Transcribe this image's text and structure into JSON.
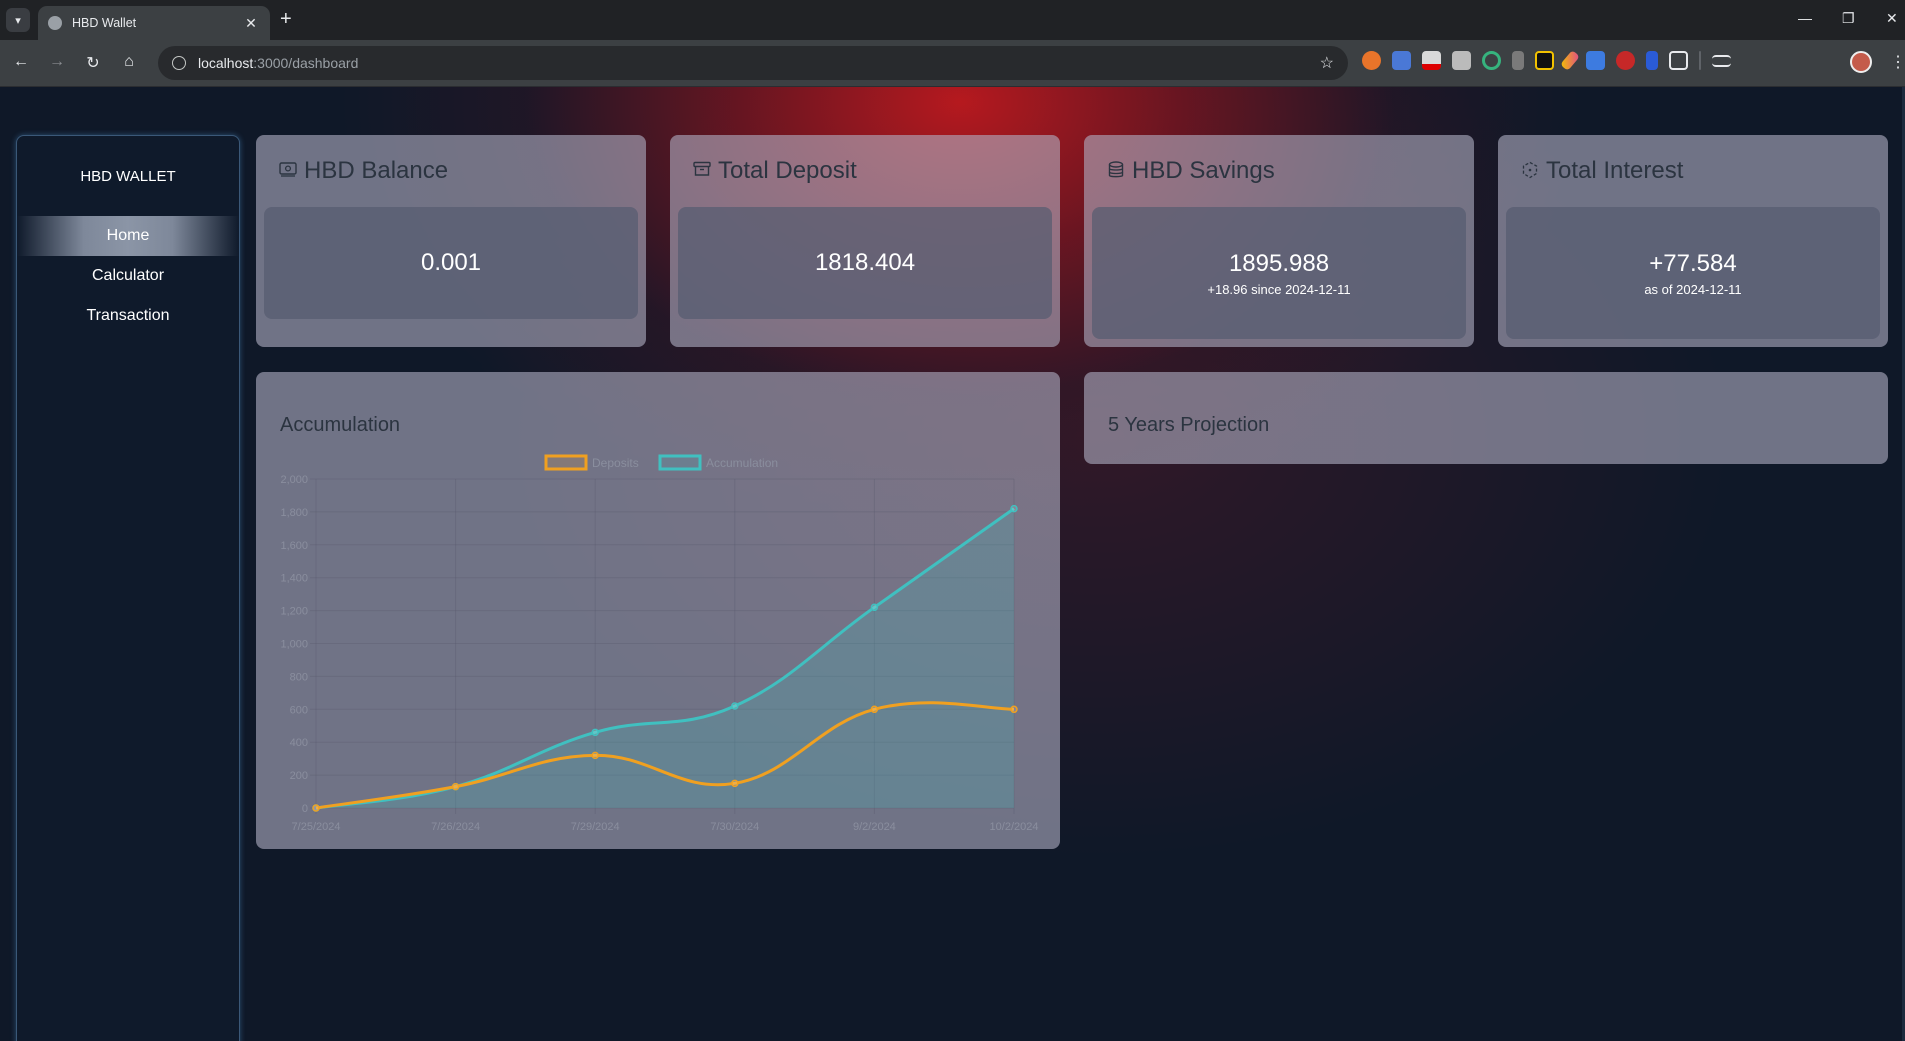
{
  "browser": {
    "tab_title": "HBD Wallet",
    "url_host": "localhost",
    "url_path": ":3000/dashboard"
  },
  "sidebar": {
    "brand": "HBD WALLET",
    "items": [
      {
        "label": "Home",
        "active": true
      },
      {
        "label": "Calculator",
        "active": false
      },
      {
        "label": "Transaction",
        "active": false
      }
    ]
  },
  "cards": {
    "balance": {
      "title": "HBD Balance",
      "value": "0.001",
      "icon": "wallet-icon"
    },
    "deposit": {
      "title": "Total Deposit",
      "value": "1818.404",
      "icon": "archive-icon"
    },
    "savings": {
      "title": "HBD Savings",
      "value": "1895.988",
      "sub": "+18.96 since 2024-12-11",
      "icon": "database-icon"
    },
    "interest": {
      "title": "Total Interest",
      "value": "+77.584",
      "sub": "as of 2024-12-11",
      "icon": "cube-icon"
    }
  },
  "accumulation": {
    "title": "Accumulation"
  },
  "projection": {
    "title": "5 Years Projection"
  },
  "colors": {
    "accent_red": "#be191e",
    "deposits": "#f0a020",
    "accumulation": "#40c0c0"
  },
  "chart_data": {
    "type": "line",
    "categories": [
      "7/25/2024",
      "7/26/2024",
      "7/29/2024",
      "7/30/2024",
      "9/2/2024",
      "10/2/2024"
    ],
    "series": [
      {
        "name": "Deposits",
        "values": [
          0,
          130,
          320,
          150,
          600,
          600
        ]
      },
      {
        "name": "Accumulation",
        "values": [
          0,
          130,
          460,
          620,
          1220,
          1820
        ]
      }
    ],
    "ylim": [
      0,
      2000
    ],
    "yticks": [
      "0",
      "200",
      "400",
      "600",
      "800",
      "1,000",
      "1,200",
      "1,400",
      "1,600",
      "1,800",
      "2,000"
    ],
    "grid": true,
    "legend": "top",
    "title": "",
    "xlabel": "",
    "ylabel": ""
  }
}
